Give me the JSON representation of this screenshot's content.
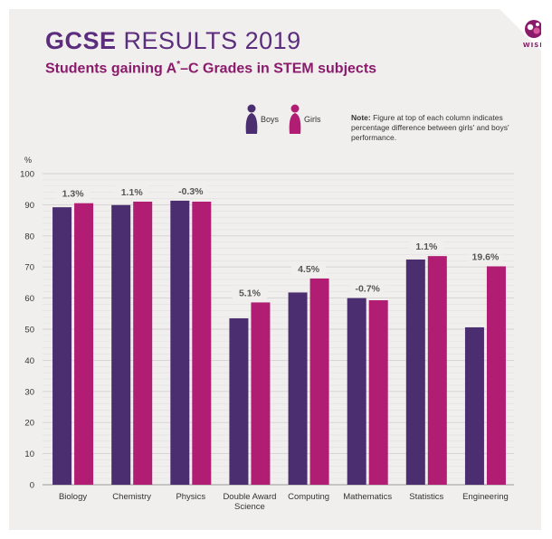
{
  "header": {
    "title_bold": "GCSE",
    "title_rest": "RESULTS 2019",
    "subtitle_pre": "Students gaining A",
    "subtitle_sup": "*",
    "subtitle_post": "–C Grades in STEM subjects"
  },
  "logo": {
    "text": "WISE",
    "color": "#8b1a6b",
    "icon": "wise-logo-icon"
  },
  "legend": {
    "boys": {
      "label": "Boys",
      "color": "#4b2e6f",
      "icon": "person-icon"
    },
    "girls": {
      "label": "Girls",
      "color": "#b01d72",
      "icon": "person-icon"
    }
  },
  "note": {
    "label": "Note:",
    "text": "Figure at top of each column indicates percentage difference between girls' and boys' performance."
  },
  "chart_data": {
    "type": "bar",
    "ylabel": "%",
    "xlabel": "",
    "ylim": [
      0,
      100
    ],
    "yticks": [
      0,
      10,
      20,
      30,
      40,
      50,
      60,
      70,
      80,
      90,
      100
    ],
    "grid": true,
    "categories": [
      "Biology",
      "Chemistry",
      "Physics",
      "Double Award Science",
      "Computing",
      "Mathematics",
      "Statistics",
      "Engineering"
    ],
    "category_lines": [
      [
        "Biology"
      ],
      [
        "Chemistry"
      ],
      [
        "Physics"
      ],
      [
        "Double Award",
        "Science"
      ],
      [
        "Computing"
      ],
      [
        "Mathematics"
      ],
      [
        "Statistics"
      ],
      [
        "Engineering"
      ]
    ],
    "series": [
      {
        "name": "Boys",
        "color": "#4b2e6f",
        "values": [
          89.2,
          89.9,
          91.3,
          53.5,
          61.8,
          60.0,
          72.4,
          50.6
        ]
      },
      {
        "name": "Girls",
        "color": "#b01d72",
        "values": [
          90.5,
          91.0,
          91.0,
          58.6,
          66.3,
          59.3,
          73.5,
          70.2
        ]
      }
    ],
    "annotations": [
      "1.3%",
      "1.1%",
      "-0.3%",
      "5.1%",
      "4.5%",
      "-0.7%",
      "1.1%",
      "19.6%"
    ],
    "legend_position": "top"
  }
}
